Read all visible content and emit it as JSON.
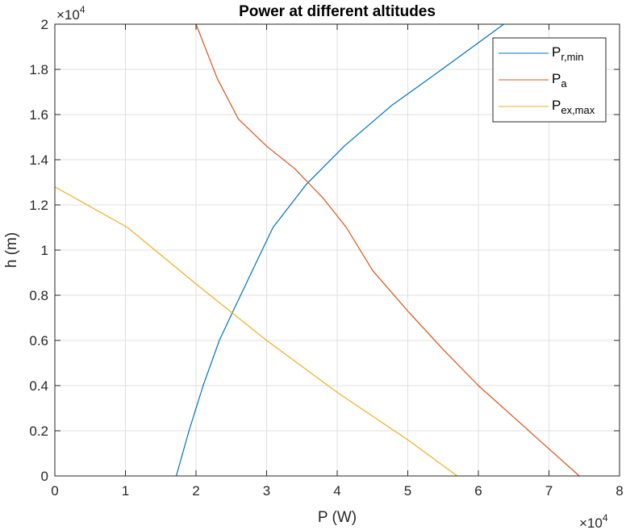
{
  "chart_data": {
    "type": "line",
    "title": "Power at different altitudes",
    "xlabel": "P (W)",
    "ylabel": "h (m)",
    "x_exponent": "×10",
    "x_exponent_power": "4",
    "y_exponent": "×10",
    "y_exponent_power": "4",
    "xlim": [
      0,
      80000
    ],
    "ylim": [
      0,
      20000
    ],
    "x_ticks": [
      0,
      10000,
      20000,
      30000,
      40000,
      50000,
      60000,
      70000,
      80000
    ],
    "x_tick_labels": [
      "0",
      "1",
      "2",
      "3",
      "4",
      "5",
      "6",
      "7",
      "8"
    ],
    "y_ticks": [
      0,
      2000,
      4000,
      6000,
      8000,
      10000,
      12000,
      14000,
      16000,
      18000,
      20000
    ],
    "y_tick_labels": [
      "0",
      "0.2",
      "0.4",
      "0.6",
      "0.8",
      "1",
      "1.2",
      "1.4",
      "1.6",
      "1.8",
      "2"
    ],
    "grid": true,
    "legend_position": "top-right",
    "series": [
      {
        "name": "P",
        "subscript": "r,min",
        "color": "#0072BD",
        "points": [
          [
            17200,
            0
          ],
          [
            19000,
            2000
          ],
          [
            21000,
            4000
          ],
          [
            23300,
            6000
          ],
          [
            25400,
            7400
          ],
          [
            28300,
            9300
          ],
          [
            30900,
            11000
          ],
          [
            35600,
            12900
          ],
          [
            41000,
            14600
          ],
          [
            47700,
            16400
          ],
          [
            54400,
            17900
          ],
          [
            63600,
            20000
          ]
        ]
      },
      {
        "name": "P",
        "subscript": "a",
        "color": "#D95319",
        "points": [
          [
            20000,
            20000
          ],
          [
            23000,
            17600
          ],
          [
            26000,
            15800
          ],
          [
            30000,
            14600
          ],
          [
            34000,
            13600
          ],
          [
            38000,
            12300
          ],
          [
            41300,
            11000
          ],
          [
            45000,
            9100
          ],
          [
            50000,
            7300
          ],
          [
            55000,
            5600
          ],
          [
            60000,
            4000
          ],
          [
            65000,
            2600
          ],
          [
            70000,
            1200
          ],
          [
            74300,
            0
          ]
        ]
      },
      {
        "name": "P",
        "subscript": "ex,max",
        "color": "#EDB120",
        "points": [
          [
            0,
            12800
          ],
          [
            10300,
            11000
          ],
          [
            20000,
            8500
          ],
          [
            30000,
            6000
          ],
          [
            40000,
            3700
          ],
          [
            50000,
            1600
          ],
          [
            57000,
            0
          ]
        ]
      }
    ]
  }
}
